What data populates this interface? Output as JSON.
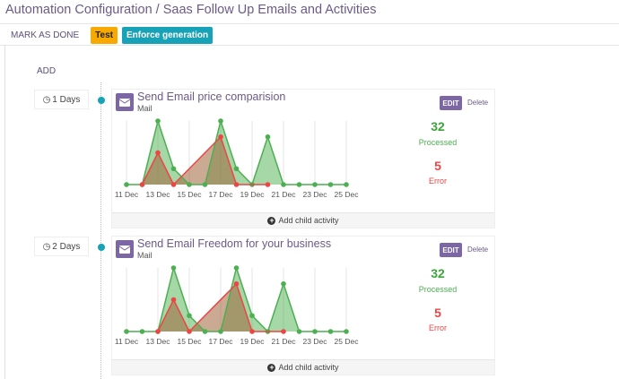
{
  "header": {
    "breadcrumb_root": "Automation Configuration",
    "separator": " / ",
    "breadcrumb_current": "Saas Follow Up Emails and Activities"
  },
  "toolbar": {
    "mark_done": "MARK AS DONE",
    "test": "Test",
    "enforce": "Enforce generation"
  },
  "add_label": "ADD",
  "activities": [
    {
      "delay": "1 Days",
      "name": "Send Email price comparision",
      "type": "Mail",
      "edit": "EDIT",
      "delete": "Delete",
      "processed": "32",
      "processed_label": "Processed",
      "error": "5",
      "error_label": "Error",
      "add_child": "Add child activity"
    },
    {
      "delay": "2 Days",
      "name": "Send Email Freedom for your business",
      "type": "Mail",
      "edit": "EDIT",
      "delete": "Delete",
      "processed": "32",
      "processed_label": "Processed",
      "error": "5",
      "error_label": "Error",
      "add_child": "Add child activity"
    }
  ],
  "chart_data": [
    {
      "type": "area",
      "x": [
        "11 Dec",
        "12 Dec",
        "13 Dec",
        "14 Dec",
        "15 Dec",
        "16 Dec",
        "17 Dec",
        "18 Dec",
        "19 Dec",
        "20 Dec",
        "21 Dec",
        "22 Dec",
        "23 Dec",
        "24 Dec",
        "25 Dec"
      ],
      "tick_labels": [
        "11 Dec",
        "13 Dec",
        "15 Dec",
        "17 Dec",
        "19 Dec",
        "21 Dec",
        "23 Dec",
        "25 Dec"
      ],
      "series": [
        {
          "name": "Processed",
          "color": "#4caf50",
          "values": [
            0,
            0,
            4,
            1,
            0,
            0,
            4,
            1,
            0,
            3,
            0,
            0,
            0,
            0,
            0
          ]
        },
        {
          "name": "Error",
          "color": "#ef4444",
          "values": [
            null,
            0,
            2,
            0,
            null,
            null,
            3,
            0,
            null,
            0,
            null,
            null,
            null,
            null,
            null
          ]
        }
      ],
      "ylim": [
        0,
        4
      ]
    },
    {
      "type": "area",
      "x": [
        "11 Dec",
        "12 Dec",
        "13 Dec",
        "14 Dec",
        "15 Dec",
        "16 Dec",
        "17 Dec",
        "18 Dec",
        "19 Dec",
        "20 Dec",
        "21 Dec",
        "22 Dec",
        "23 Dec",
        "24 Dec",
        "25 Dec"
      ],
      "tick_labels": [
        "11 Dec",
        "13 Dec",
        "15 Dec",
        "17 Dec",
        "19 Dec",
        "21 Dec",
        "23 Dec",
        "25 Dec"
      ],
      "series": [
        {
          "name": "Processed",
          "color": "#4caf50",
          "values": [
            0,
            0,
            0,
            4,
            1,
            0,
            0,
            4,
            1,
            0,
            3,
            0,
            0,
            0,
            0
          ]
        },
        {
          "name": "Error",
          "color": "#ef4444",
          "values": [
            null,
            null,
            0,
            2,
            0,
            null,
            null,
            3,
            0,
            null,
            0,
            null,
            null,
            null,
            null
          ]
        }
      ],
      "ylim": [
        0,
        4
      ]
    }
  ]
}
